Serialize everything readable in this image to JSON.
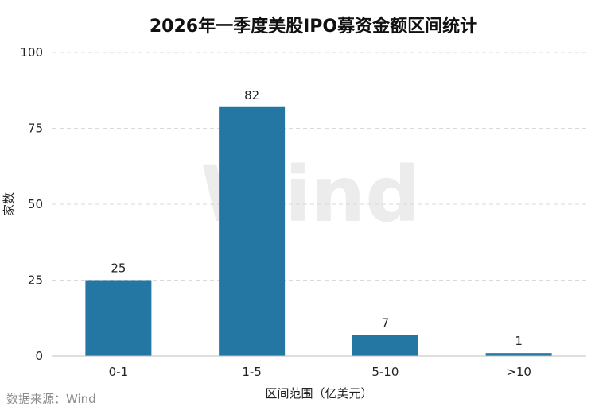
{
  "chart_data": {
    "type": "bar",
    "title": "2026年一季度美股IPO募资金额区间统计",
    "xlabel": "区间范围（亿美元）",
    "ylabel": "家数",
    "categories": [
      "0-1",
      "1-5",
      "5-10",
      ">10"
    ],
    "values": [
      25,
      82,
      7,
      1
    ],
    "ylim": [
      0,
      100
    ],
    "yticks": [
      0,
      25,
      50,
      75,
      100
    ],
    "grid": true,
    "legend": "none",
    "bar_color": "#2477a3"
  },
  "source": "数据来源：Wind",
  "watermark": "Wind"
}
